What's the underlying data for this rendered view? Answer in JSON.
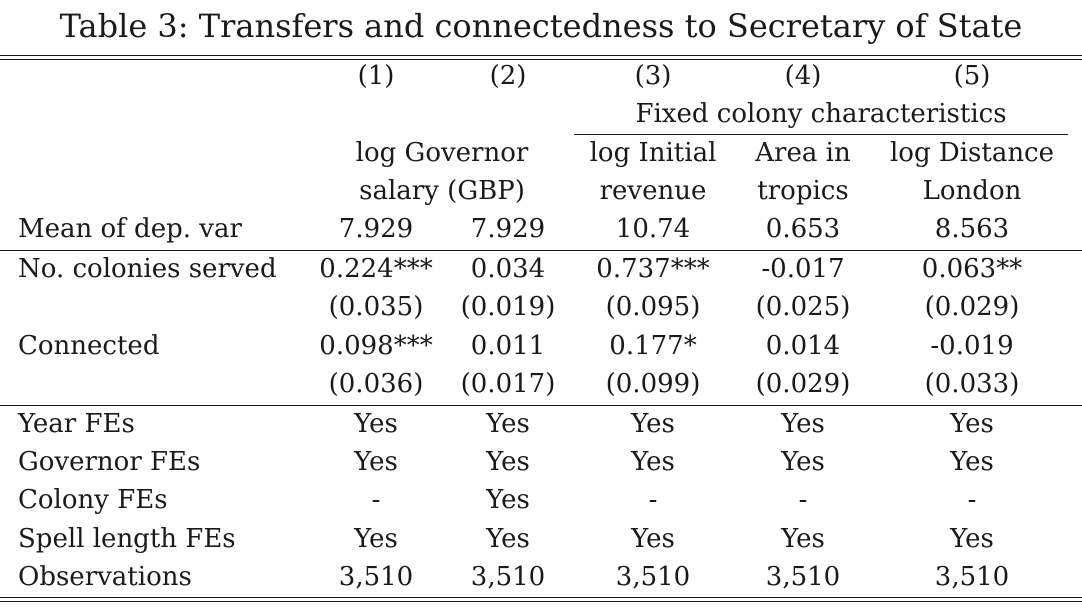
{
  "title": "Table 3: Transfers and connectedness to Secretary of State",
  "columns": {
    "numbers": [
      "(1)",
      "(2)",
      "(3)",
      "(4)",
      "(5)"
    ],
    "group_header": "Fixed colony characteristics",
    "dep_var_col12_line1": "log Governor",
    "dep_var_col12_line2": "salary (GBP)",
    "dep_var_col3_line1": "log Initial",
    "dep_var_col3_line2": "revenue",
    "dep_var_col4_line1": "Area in",
    "dep_var_col4_line2": "tropics",
    "dep_var_col5_line1": "log Distance",
    "dep_var_col5_line2": "London"
  },
  "mean_row": {
    "label": "Mean of dep. var",
    "values": [
      "7.929",
      "7.929",
      "10.74",
      "0.653",
      "8.563"
    ]
  },
  "coef_rows": [
    {
      "label": "No. colonies served",
      "coefs": [
        "0.224***",
        "0.034",
        "0.737***",
        "-0.017",
        "0.063**"
      ],
      "ses": [
        "(0.035)",
        "(0.019)",
        "(0.095)",
        "(0.025)",
        "(0.029)"
      ]
    },
    {
      "label": "Connected",
      "coefs": [
        "0.098***",
        "0.011",
        "0.177*",
        "0.014",
        "-0.019"
      ],
      "ses": [
        "(0.036)",
        "(0.017)",
        "(0.099)",
        "(0.029)",
        "(0.033)"
      ]
    }
  ],
  "fe_rows": [
    {
      "label": "Year FEs",
      "values": [
        "Yes",
        "Yes",
        "Yes",
        "Yes",
        "Yes"
      ]
    },
    {
      "label": "Governor FEs",
      "values": [
        "Yes",
        "Yes",
        "Yes",
        "Yes",
        "Yes"
      ]
    },
    {
      "label": "Colony FEs",
      "values": [
        "-",
        "Yes",
        "-",
        "-",
        "-"
      ]
    },
    {
      "label": "Spell length FEs",
      "values": [
        "Yes",
        "Yes",
        "Yes",
        "Yes",
        "Yes"
      ]
    },
    {
      "label": "Observations",
      "values": [
        "3,510",
        "3,510",
        "3,510",
        "3,510",
        "3,510"
      ]
    }
  ]
}
